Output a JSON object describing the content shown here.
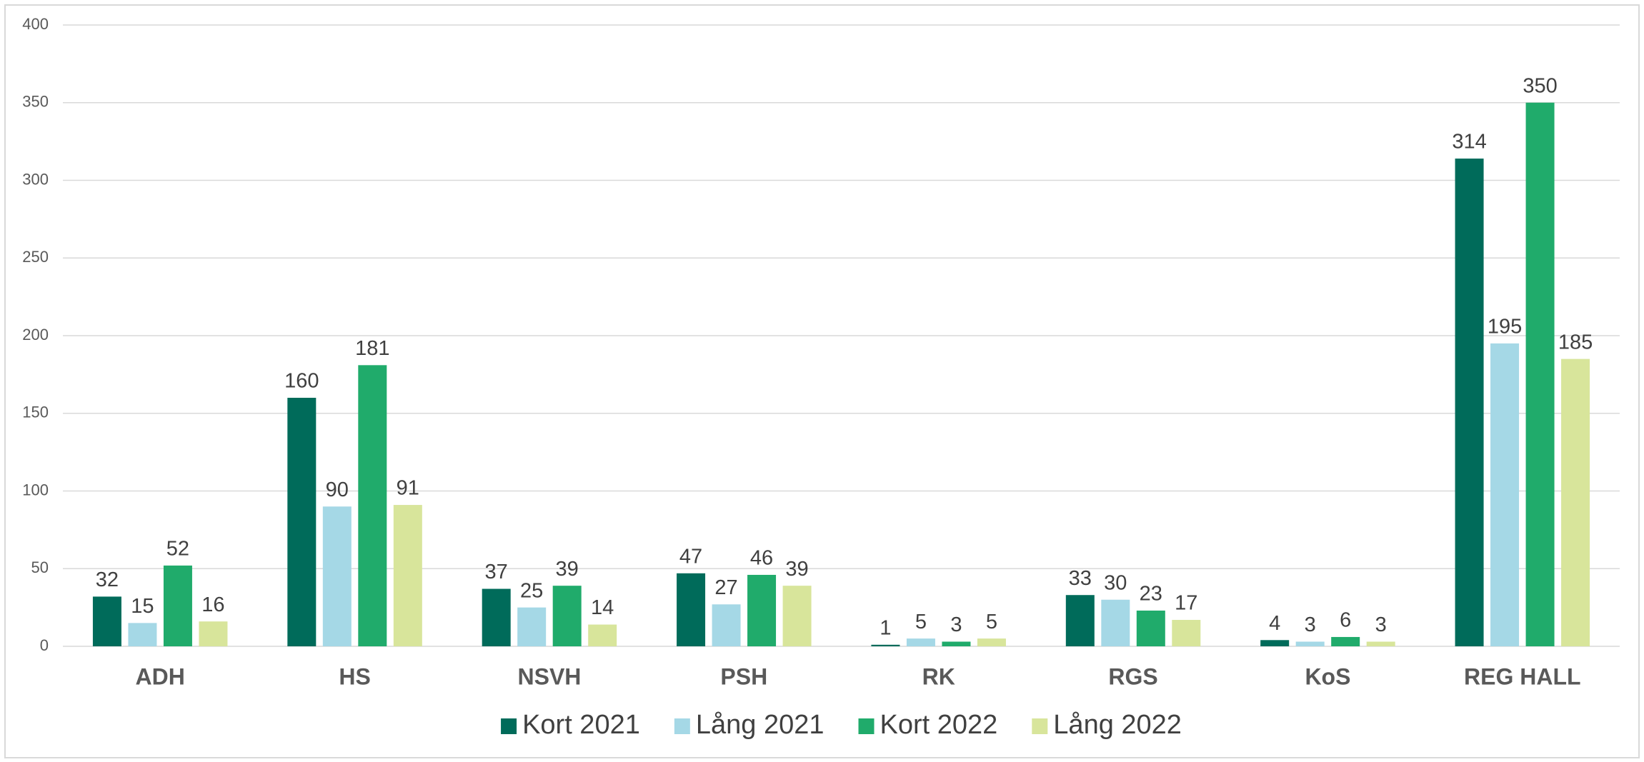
{
  "chart_data": {
    "type": "bar",
    "categories": [
      "ADH",
      "HS",
      "NSVH",
      "PSH",
      "RK",
      "RGS",
      "KoS",
      "REG HALL"
    ],
    "series": [
      {
        "name": "Kort 2021",
        "color": "#006b5a",
        "values": [
          32,
          160,
          37,
          47,
          1,
          33,
          4,
          314
        ]
      },
      {
        "name": "Lång 2021",
        "color": "#a5d8e6",
        "values": [
          15,
          90,
          25,
          27,
          5,
          30,
          3,
          195
        ]
      },
      {
        "name": "Kort 2022",
        "color": "#20ab6b",
        "values": [
          52,
          181,
          39,
          46,
          3,
          23,
          6,
          350
        ]
      },
      {
        "name": "Lång 2022",
        "color": "#d8e59b",
        "values": [
          16,
          91,
          14,
          39,
          5,
          17,
          3,
          185
        ]
      }
    ],
    "ylim": [
      0,
      400
    ],
    "yticks": [
      0,
      50,
      100,
      150,
      200,
      250,
      300,
      350,
      400
    ],
    "grid": true,
    "legend": "bottom"
  }
}
